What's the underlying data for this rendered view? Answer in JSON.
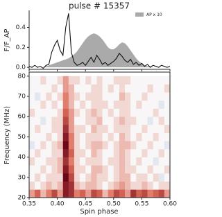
{
  "chart_data": [
    {
      "type": "line",
      "title": "pulse # 15357",
      "ylabel": "F/F_AP",
      "x": [
        0.35,
        0.355,
        0.36,
        0.365,
        0.37,
        0.375,
        0.38,
        0.385,
        0.39,
        0.395,
        0.4,
        0.405,
        0.41,
        0.415,
        0.42,
        0.425,
        0.43,
        0.435,
        0.44,
        0.445,
        0.45,
        0.455,
        0.46,
        0.465,
        0.47,
        0.475,
        0.48,
        0.485,
        0.49,
        0.495,
        0.5,
        0.505,
        0.51,
        0.515,
        0.52,
        0.525,
        0.53,
        0.535,
        0.54,
        0.545,
        0.55,
        0.555,
        0.56,
        0.565,
        0.57,
        0.575,
        0.58,
        0.585,
        0.59,
        0.595,
        0.6
      ],
      "series": [
        {
          "name": "AP x 10",
          "type": "area",
          "color": "#aaaaaa",
          "values": [
            0,
            0,
            0,
            0,
            0,
            0,
            0.01,
            0.02,
            0.03,
            0.04,
            0.05,
            0.06,
            0.07,
            0.08,
            0.09,
            0.11,
            0.13,
            0.16,
            0.2,
            0.24,
            0.28,
            0.31,
            0.33,
            0.34,
            0.33,
            0.31,
            0.28,
            0.24,
            0.2,
            0.18,
            0.18,
            0.2,
            0.23,
            0.25,
            0.24,
            0.21,
            0.17,
            0.13,
            0.09,
            0.06,
            0.04,
            0.02,
            0.01,
            0.01,
            0,
            0,
            0,
            0,
            0,
            0,
            0
          ]
        },
        {
          "type": "line",
          "color": "#111111",
          "values": [
            0.01,
            0,
            0.02,
            0,
            0.01,
            -0.01,
            0.02,
            0.03,
            0.15,
            0.22,
            0.27,
            0.17,
            0.12,
            0.4,
            0.54,
            0.15,
            0.05,
            0.02,
            0.03,
            0.05,
            0.02,
            0.06,
            0.1,
            0.05,
            0.12,
            0.08,
            0.03,
            0.05,
            0.02,
            0.04,
            0.06,
            0.09,
            0.14,
            0.11,
            0.07,
            0.05,
            0.08,
            0.03,
            0.05,
            0.02,
            0.04,
            0.01,
            0.03,
            0,
            0.02,
            0.01,
            0,
            0.02,
            0.01,
            0,
            0.01
          ]
        }
      ],
      "xlim": [
        0.35,
        0.6
      ],
      "ylim": [
        -0.02,
        0.57
      ],
      "yticks": [
        {
          "value": 0,
          "label": "0.0"
        },
        0.2,
        0.4
      ],
      "legend": "upper right"
    },
    {
      "type": "heatmap",
      "xlabel": "Spin phase",
      "ylabel": "Frequency (MHz)",
      "colormap": "RdBu_r",
      "x": [
        0.355,
        0.365,
        0.375,
        0.385,
        0.395,
        0.405,
        0.415,
        0.425,
        0.435,
        0.445,
        0.455,
        0.465,
        0.475,
        0.485,
        0.495,
        0.505,
        0.515,
        0.525,
        0.535,
        0.545,
        0.555,
        0.565,
        0.575,
        0.585,
        0.595
      ],
      "y": [
        22,
        26,
        30,
        34,
        38,
        42,
        46,
        50,
        54,
        58,
        62,
        66,
        70,
        74,
        78
      ],
      "z": [
        [
          3,
          5,
          2,
          4,
          6,
          3,
          8,
          7,
          4,
          5,
          3,
          6,
          5,
          2,
          4,
          6,
          5,
          3,
          7,
          5,
          6,
          4,
          5,
          6,
          3
        ],
        [
          1,
          0,
          1,
          2,
          1,
          2,
          8,
          7,
          2,
          1,
          2,
          2,
          1,
          0,
          1,
          2,
          3,
          2,
          1,
          1,
          2,
          1,
          0,
          1,
          1
        ],
        [
          0,
          1,
          0,
          1,
          1,
          1,
          9,
          6,
          1,
          0,
          1,
          2,
          1,
          1,
          0,
          1,
          2,
          2,
          0,
          1,
          1,
          0,
          1,
          -1,
          0
        ],
        [
          0,
          0,
          1,
          0,
          1,
          2,
          8,
          5,
          1,
          1,
          0,
          2,
          2,
          1,
          0,
          1,
          2,
          1,
          1,
          0,
          0,
          1,
          0,
          0,
          1
        ],
        [
          1,
          0,
          0,
          1,
          1,
          2,
          7,
          4,
          1,
          0,
          1,
          1,
          1,
          0,
          1,
          1,
          2,
          1,
          0,
          1,
          0,
          0,
          -1,
          0,
          0
        ],
        [
          0,
          1,
          0,
          0,
          1,
          1,
          8,
          5,
          1,
          1,
          0,
          2,
          1,
          0,
          0,
          1,
          2,
          1,
          0,
          0,
          1,
          0,
          0,
          1,
          0
        ],
        [
          -1,
          0,
          1,
          0,
          1,
          2,
          9,
          4,
          1,
          0,
          1,
          2,
          2,
          1,
          0,
          1,
          2,
          2,
          1,
          0,
          0,
          1,
          0,
          0,
          -1
        ],
        [
          0,
          0,
          0,
          1,
          0,
          1,
          8,
          4,
          1,
          0,
          1,
          1,
          1,
          0,
          1,
          0,
          2,
          1,
          0,
          1,
          0,
          0,
          1,
          0,
          0
        ],
        [
          0,
          1,
          0,
          0,
          1,
          1,
          7,
          3,
          1,
          1,
          0,
          2,
          1,
          1,
          0,
          1,
          1,
          1,
          0,
          0,
          1,
          0,
          0,
          0,
          1
        ],
        [
          0,
          0,
          -1,
          0,
          1,
          1,
          6,
          3,
          0,
          0,
          1,
          1,
          2,
          0,
          0,
          1,
          2,
          1,
          1,
          0,
          0,
          -1,
          0,
          1,
          0
        ],
        [
          1,
          0,
          0,
          0,
          0,
          1,
          5,
          3,
          1,
          0,
          1,
          2,
          1,
          0,
          1,
          0,
          1,
          1,
          0,
          0,
          0,
          0,
          1,
          0,
          0
        ],
        [
          0,
          0,
          1,
          0,
          1,
          0,
          4,
          2,
          0,
          1,
          0,
          1,
          1,
          1,
          0,
          1,
          1,
          1,
          0,
          1,
          0,
          0,
          0,
          -1,
          0
        ],
        [
          0,
          -1,
          0,
          1,
          0,
          1,
          4,
          2,
          1,
          0,
          1,
          1,
          1,
          0,
          0,
          0,
          2,
          1,
          0,
          0,
          1,
          0,
          0,
          0,
          0
        ],
        [
          0,
          0,
          0,
          0,
          1,
          0,
          3,
          2,
          0,
          0,
          0,
          1,
          1,
          0,
          1,
          0,
          1,
          0,
          0,
          0,
          0,
          1,
          0,
          0,
          1
        ],
        [
          0,
          0,
          1,
          0,
          0,
          1,
          3,
          1,
          1,
          0,
          1,
          0,
          1,
          0,
          0,
          1,
          1,
          1,
          0,
          0,
          0,
          0,
          0,
          0,
          0
        ]
      ],
      "xlim": [
        0.35,
        0.6
      ],
      "ylim": [
        20,
        82
      ],
      "xticks": [
        0.35,
        {
          "value": 0.4,
          "label": "0.40"
        },
        0.45,
        {
          "value": 0.5,
          "label": "0.50"
        },
        0.55,
        {
          "value": 0.6,
          "label": "0.60"
        }
      ],
      "yticks": [
        20,
        30,
        40,
        50,
        60,
        70,
        80
      ]
    }
  ]
}
